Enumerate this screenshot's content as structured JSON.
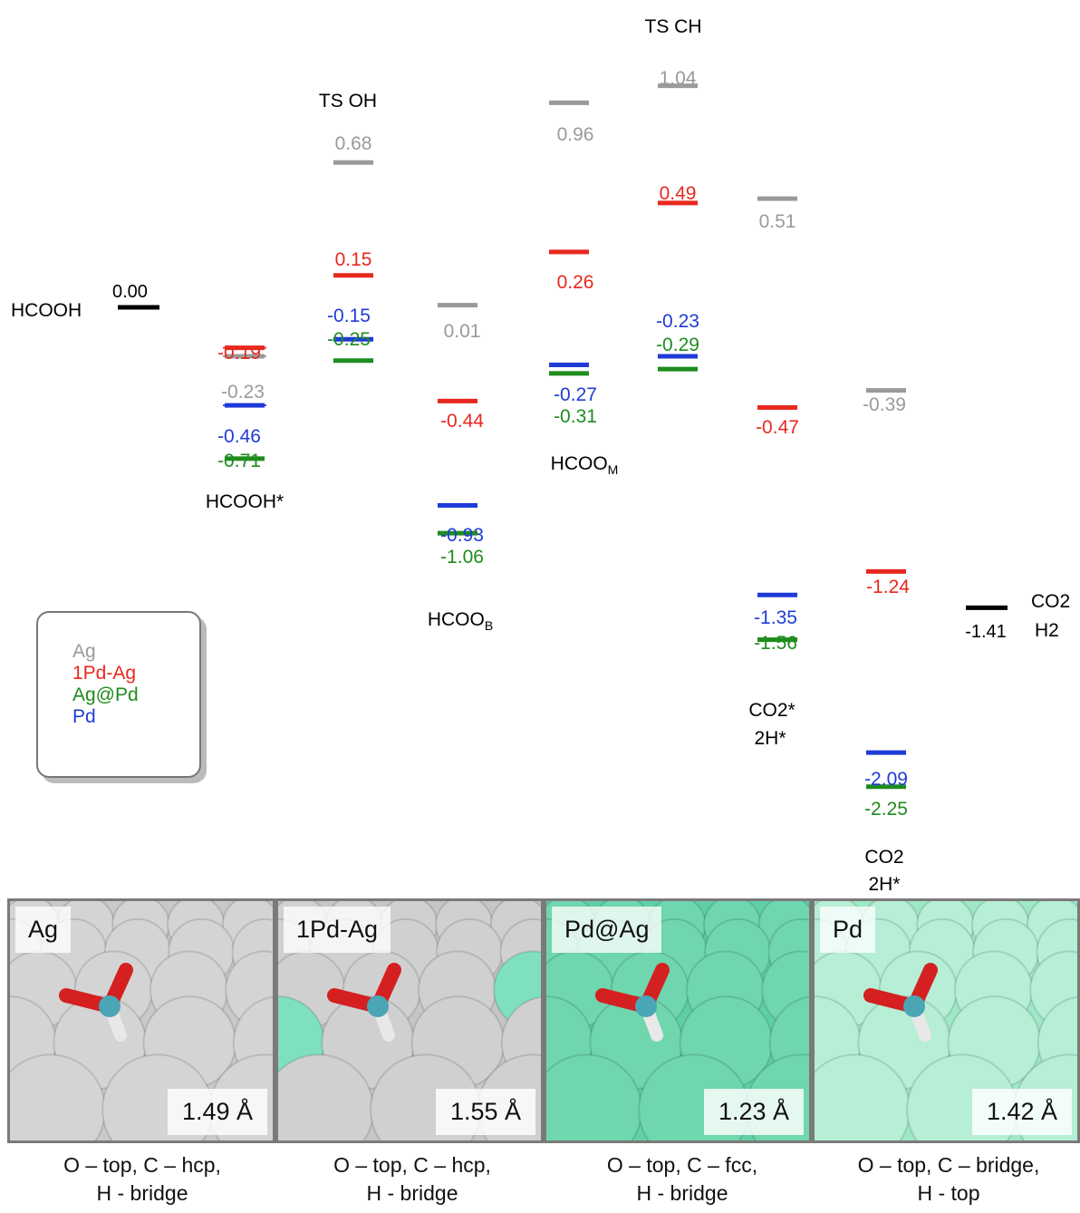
{
  "chart_data": {
    "type": "energy-profile",
    "start": {
      "label": "HCOOH",
      "value": "0.00"
    },
    "end": {
      "label": [
        "CO2",
        "H2"
      ],
      "value": "-1.41"
    },
    "intermediates": [
      {
        "id": "hcooh_ads",
        "label": "HCOOH*"
      },
      {
        "id": "ts_oh",
        "label": "TS OH"
      },
      {
        "id": "hcoo_b",
        "label": "HCOOB"
      },
      {
        "id": "hcoo_m",
        "label": "HCOOM"
      },
      {
        "id": "ts_ch",
        "label": "TS CH"
      },
      {
        "id": "co2_2h_ads",
        "label": [
          "CO2*",
          "2H*"
        ]
      },
      {
        "id": "co2_2h",
        "label": [
          "CO2",
          "2H*"
        ]
      }
    ],
    "series": [
      {
        "name": "Ag",
        "color": "#9a9a9a",
        "values": [
          -0.23,
          0.68,
          0.01,
          0.96,
          1.04,
          0.51,
          -0.39
        ]
      },
      {
        "name": "1Pd-Ag",
        "color": "#e8281e",
        "values": [
          -0.19,
          0.15,
          -0.44,
          0.26,
          0.49,
          -0.47,
          -1.24
        ]
      },
      {
        "name": "Ag@Pd",
        "color": "#1e8c1e",
        "values": [
          -0.71,
          -0.25,
          -1.06,
          -0.31,
          -0.29,
          -1.56,
          -2.25
        ]
      },
      {
        "name": "Pd",
        "color": "#1f3bd8",
        "values": [
          -0.46,
          -0.15,
          -0.93,
          -0.27,
          -0.23,
          -1.35,
          -2.09
        ]
      }
    ],
    "labels": {
      "Ag": [
        "-0.23",
        "0.68",
        "0.01",
        "0.96",
        "1.04",
        "0.51",
        "-0.39"
      ],
      "1Pd-Ag": [
        "-0.19",
        "0.15",
        "-0.44",
        "0.26",
        "0.49",
        "-0.47",
        "-1.24"
      ],
      "Ag@Pd": [
        "-0.71",
        "-0.25",
        "-1.06",
        "-0.31",
        "-0.29",
        "-1.56",
        "-2.25"
      ],
      "Pd": [
        "-0.46",
        "-0.15",
        "-0.93",
        "-0.27",
        "-0.23",
        "-1.35",
        "-2.09"
      ]
    }
  },
  "legend": [
    "Ag",
    "1Pd-Ag",
    "Ag@Pd",
    "Pd"
  ],
  "panels": [
    {
      "label": "Ag",
      "distance": "1.49 Å",
      "caption_1": "O – top, C – hcp,",
      "caption_2": "H - bridge"
    },
    {
      "label": "1Pd-Ag",
      "distance": "1.55 Å",
      "caption_1": "O – top, C – hcp,",
      "caption_2": "H - bridge"
    },
    {
      "label": "Pd@Ag",
      "distance": "1.23 Å",
      "caption_1": "O – top, C – fcc,",
      "caption_2": "H - bridge"
    },
    {
      "label": "Pd",
      "distance": "1.42 Å",
      "caption_1": "O – top, C – bridge,",
      "caption_2": "H - top"
    }
  ]
}
